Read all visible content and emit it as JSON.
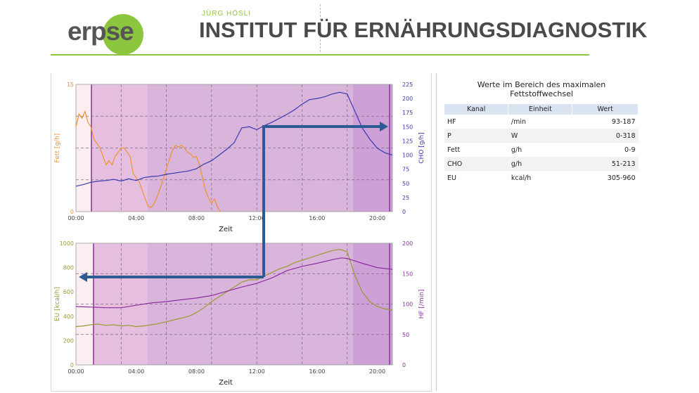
{
  "header": {
    "logo_text": "erpse",
    "subtitle": "JÜRG HÖSLI",
    "title": "INSTITUT FÜR ERNÄHRUNGSDIAGNOSTIK",
    "accent_color": "#8cc63f"
  },
  "table": {
    "title_line1": "Werte im Bereich des maximalen",
    "title_line2": "Fettstoffwechsel",
    "columns": [
      "Kanal",
      "Einheit",
      "Wert"
    ],
    "rows": [
      {
        "kanal": "HF",
        "einheit": "/min",
        "wert": "93-187"
      },
      {
        "kanal": "P",
        "einheit": "W",
        "wert": "0-318"
      },
      {
        "kanal": "Fett",
        "einheit": "g/h",
        "wert": "0-9"
      },
      {
        "kanal": "CHO",
        "einheit": "g/h",
        "wert": "51-213"
      },
      {
        "kanal": "EU",
        "einheit": "kcal/h",
        "wert": "305-960"
      }
    ]
  },
  "chart_data": [
    {
      "type": "line",
      "xlabel": "Zeit",
      "x_ticks": [
        "00:00",
        "04:00",
        "08:00",
        "12:00",
        "16:00",
        "20:00"
      ],
      "xlim": [
        0,
        21
      ],
      "grid": true,
      "y_left": {
        "label": "Fett [g/h]",
        "ticks": [
          "0",
          "15"
        ],
        "lim": [
          0,
          15
        ],
        "color": "#f0922c"
      },
      "y_right": {
        "label": "CHO [g/h]",
        "ticks": [
          "0",
          "25",
          "50",
          "75",
          "100",
          "125",
          "150",
          "175",
          "200",
          "225"
        ],
        "lim": [
          0,
          225
        ],
        "color": "#3a3ab0"
      },
      "series": [
        {
          "axis": "left",
          "color": "#f0922c",
          "x": [
            0,
            0.2,
            0.4,
            0.6,
            0.8,
            1.0,
            1.2,
            1.4,
            1.6,
            1.8,
            2.0,
            2.2,
            2.4,
            2.6,
            2.8,
            3.0,
            3.2,
            3.4,
            3.6,
            3.8,
            4.0,
            4.2,
            4.4,
            4.6,
            4.8,
            5.0,
            5.2,
            5.4,
            5.6,
            5.8,
            6.0,
            6.2,
            6.4,
            6.6,
            6.8,
            7.0,
            7.2,
            7.4,
            7.6,
            7.8,
            8.0,
            8.2,
            8.4,
            8.6,
            8.8,
            9.0,
            9.2,
            9.4,
            9.6
          ],
          "y": [
            10,
            11.5,
            11,
            11.8,
            10.5,
            10,
            8.5,
            8,
            7.5,
            6.5,
            5.5,
            6,
            5.5,
            6.5,
            7,
            7.5,
            7.5,
            7,
            6.5,
            4.5,
            4,
            3.5,
            2.5,
            1.5,
            0.6,
            0.5,
            1.0,
            1.8,
            2.8,
            3.8,
            5,
            6.2,
            7.2,
            7.8,
            7.6,
            7.8,
            7.5,
            7,
            6.8,
            6.4,
            6.5,
            5.5,
            4,
            2.5,
            1.6,
            1.0,
            1.5,
            0.5,
            0
          ]
        },
        {
          "axis": "right",
          "color": "#3a3ab0",
          "x": [
            0,
            0.5,
            1.0,
            1.5,
            2.0,
            2.5,
            3.0,
            3.5,
            4.0,
            4.5,
            5.0,
            5.5,
            6.0,
            6.5,
            7.0,
            7.5,
            8.0,
            8.5,
            9.0,
            9.5,
            10.0,
            10.5,
            11.0,
            11.5,
            12.0,
            12.5,
            13.0,
            13.5,
            14.0,
            14.5,
            15.0,
            15.5,
            16.0,
            16.5,
            17.0,
            17.5,
            18.0,
            18.5,
            19.0,
            19.5,
            20.0,
            20.5,
            21.0
          ],
          "y": [
            45,
            48,
            52,
            54,
            55,
            57,
            54,
            58,
            55,
            60,
            62,
            63,
            66,
            68,
            70,
            72,
            76,
            84,
            90,
            100,
            110,
            122,
            148,
            150,
            145,
            152,
            158,
            165,
            172,
            180,
            190,
            198,
            200,
            203,
            208,
            211,
            208,
            178,
            148,
            128,
            112,
            104,
            100
          ]
        }
      ]
    },
    {
      "type": "line",
      "xlabel": "Zeit",
      "x_ticks": [
        "00:00",
        "04:00",
        "08:00",
        "12:00",
        "16:00",
        "20:00"
      ],
      "xlim": [
        0,
        21
      ],
      "grid": true,
      "y_left": {
        "label": "EU [kcal/h]",
        "ticks": [
          "0",
          "200",
          "400",
          "600",
          "800",
          "1000"
        ],
        "lim": [
          0,
          1000
        ],
        "color": "#9a9a30"
      },
      "y_right": {
        "label": "HF [/min]",
        "ticks": [
          "0",
          "50",
          "100",
          "150",
          "200"
        ],
        "lim": [
          0,
          200
        ],
        "color": "#8b2f9e"
      },
      "series": [
        {
          "axis": "left",
          "color": "#9a9a30",
          "x": [
            0,
            0.5,
            1.0,
            1.5,
            2.0,
            2.5,
            3.0,
            3.5,
            4.0,
            4.5,
            5.0,
            5.5,
            6.0,
            6.5,
            7.0,
            7.5,
            8.0,
            8.5,
            9.0,
            9.5,
            10.0,
            10.5,
            11.0,
            11.5,
            12.0,
            12.5,
            13.0,
            13.5,
            14.0,
            14.5,
            15.0,
            15.5,
            16.0,
            16.5,
            17.0,
            17.5,
            18.0,
            18.5,
            19.0,
            19.5,
            20.0,
            20.5,
            21.0
          ],
          "y": [
            315,
            320,
            330,
            335,
            325,
            330,
            320,
            325,
            315,
            320,
            330,
            340,
            355,
            370,
            385,
            400,
            430,
            470,
            520,
            560,
            600,
            640,
            680,
            700,
            700,
            730,
            760,
            790,
            810,
            840,
            860,
            880,
            900,
            920,
            940,
            950,
            930,
            740,
            600,
            520,
            480,
            460,
            450
          ]
        },
        {
          "axis": "right",
          "color": "#8b2f9e",
          "x": [
            0,
            1,
            2,
            3,
            4,
            5,
            6,
            7,
            8,
            9,
            10,
            11,
            12,
            13,
            14,
            15,
            16,
            17,
            17.6,
            18,
            19,
            20,
            21
          ],
          "y": [
            96,
            95,
            94,
            94,
            98,
            102,
            104,
            107,
            110,
            114,
            121,
            128,
            134,
            143,
            155,
            162,
            167,
            173,
            176,
            175,
            167,
            160,
            157
          ]
        }
      ]
    }
  ]
}
